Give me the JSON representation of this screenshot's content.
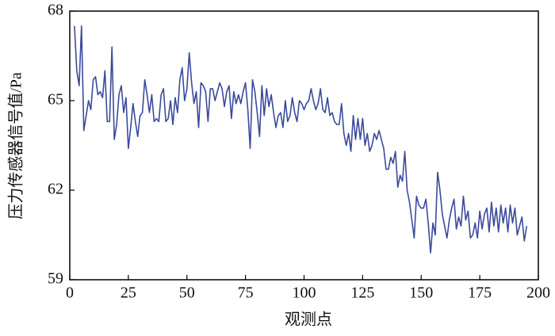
{
  "chart_data": {
    "type": "line",
    "xlabel": "观测点",
    "ylabel": "压力传感器信号值/Pa",
    "color": "#3b4a9c",
    "xlim": [
      0,
      200
    ],
    "xticks": [
      0,
      25,
      50,
      75,
      100,
      125,
      150,
      175,
      200
    ],
    "ylim": [
      59,
      68
    ],
    "yticks": [
      59,
      62,
      65,
      68
    ],
    "x": [
      2,
      3,
      4,
      5,
      6,
      7,
      8,
      9,
      10,
      11,
      12,
      13,
      14,
      15,
      16,
      17,
      18,
      19,
      20,
      21,
      22,
      23,
      24,
      25,
      26,
      27,
      28,
      29,
      30,
      31,
      32,
      33,
      34,
      35,
      36,
      37,
      38,
      39,
      40,
      41,
      42,
      43,
      44,
      45,
      46,
      47,
      48,
      49,
      50,
      51,
      52,
      53,
      54,
      55,
      56,
      57,
      58,
      59,
      60,
      61,
      62,
      63,
      64,
      65,
      66,
      67,
      68,
      69,
      70,
      71,
      72,
      73,
      74,
      75,
      76,
      77,
      78,
      79,
      80,
      81,
      82,
      83,
      84,
      85,
      86,
      87,
      88,
      89,
      90,
      91,
      92,
      93,
      94,
      95,
      96,
      97,
      98,
      99,
      100,
      101,
      102,
      103,
      104,
      105,
      106,
      107,
      108,
      109,
      110,
      111,
      112,
      113,
      114,
      115,
      116,
      117,
      118,
      119,
      120,
      121,
      122,
      123,
      124,
      125,
      126,
      127,
      128,
      129,
      130,
      131,
      132,
      133,
      134,
      135,
      136,
      137,
      138,
      139,
      140,
      141,
      142,
      143,
      144,
      145,
      146,
      147,
      148,
      149,
      150,
      151,
      152,
      153,
      154,
      155,
      156,
      157,
      158,
      159,
      160,
      161,
      162,
      163,
      164,
      165,
      166,
      167,
      168,
      169,
      170,
      171,
      172,
      173,
      174,
      175,
      176,
      177,
      178,
      179,
      180,
      181,
      182,
      183,
      184,
      185,
      186,
      187,
      188,
      189,
      190,
      191,
      192,
      193,
      194,
      195
    ],
    "values": [
      67.5,
      66.0,
      65.5,
      67.5,
      64.0,
      64.5,
      65.0,
      64.7,
      65.7,
      65.8,
      65.2,
      65.3,
      65.1,
      66.0,
      64.3,
      64.3,
      66.8,
      63.7,
      64.2,
      65.2,
      65.5,
      64.6,
      65.1,
      63.4,
      64.1,
      64.9,
      64.3,
      63.8,
      64.5,
      64.6,
      65.7,
      65.2,
      64.6,
      65.2,
      64.3,
      64.4,
      64.3,
      65.2,
      65.4,
      64.3,
      64.4,
      65.0,
      64.2,
      65.1,
      64.6,
      65.7,
      66.1,
      65.0,
      65.4,
      66.6,
      65.6,
      64.9,
      65.3,
      64.1,
      65.6,
      65.5,
      65.3,
      64.3,
      65.4,
      65.4,
      65.0,
      65.3,
      65.6,
      65.4,
      64.8,
      65.3,
      65.5,
      64.4,
      65.3,
      64.9,
      65.2,
      64.9,
      65.3,
      65.6,
      64.7,
      63.4,
      65.7,
      65.3,
      64.6,
      63.8,
      65.5,
      64.5,
      65.4,
      64.8,
      65.2,
      64.6,
      64.1,
      64.5,
      64.6,
      64.1,
      65.0,
      64.3,
      64.5,
      65.1,
      64.6,
      64.3,
      65.0,
      64.9,
      64.7,
      64.9,
      65.0,
      65.4,
      65.0,
      64.7,
      64.9,
      65.4,
      64.7,
      64.6,
      65.1,
      64.5,
      64.6,
      64.3,
      64.2,
      64.2,
      64.9,
      63.9,
      63.5,
      63.9,
      63.3,
      64.5,
      63.7,
      64.4,
      63.7,
      64.4,
      63.5,
      63.9,
      63.3,
      63.5,
      63.9,
      63.7,
      64.0,
      63.7,
      63.4,
      62.7,
      62.7,
      63.1,
      62.9,
      63.3,
      62.1,
      62.5,
      62.3,
      63.3,
      62.0,
      61.6,
      61.0,
      60.4,
      61.8,
      61.5,
      61.4,
      61.4,
      61.7,
      60.9,
      59.9,
      60.9,
      60.5,
      62.6,
      62.0,
      61.2,
      60.8,
      60.4,
      61.0,
      61.4,
      61.7,
      60.7,
      61.1,
      60.8,
      61.8,
      61.0,
      61.3,
      60.4,
      60.5,
      60.9,
      60.4,
      61.3,
      60.7,
      61.2,
      61.4,
      60.6,
      61.6,
      60.8,
      61.4,
      60.6,
      61.5,
      60.9,
      61.4,
      60.6,
      61.5,
      60.9,
      61.4,
      60.5,
      60.8,
      61.1,
      60.3,
      60.8
    ]
  }
}
